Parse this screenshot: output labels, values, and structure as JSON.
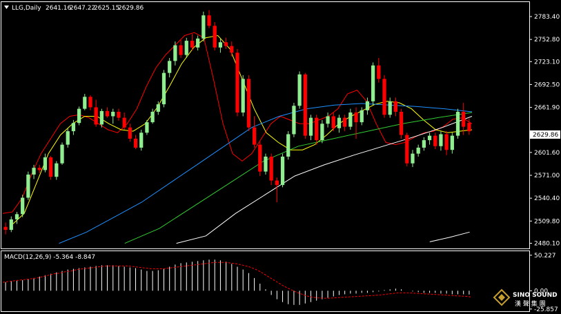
{
  "header": {
    "symbol_line": "LLG,Daily",
    "open": "2641.16",
    "high": "2647.22",
    "low": "2625.15",
    "close": "2629.86"
  },
  "macd_label": "MACD(12,26,9) -5.364 -8.847",
  "watermark": {
    "brand": "SINO SOUND",
    "chinese": "漢 聲 集 團"
  },
  "colors": {
    "background": "#000000",
    "up_candle": "#90ee90",
    "down_candle": "#ff0000",
    "ma5": "#ff0000",
    "ma10": "#ffff00",
    "ma30": "#1e90ff",
    "ma60": "#32cd32",
    "ma120": "#ffffff",
    "macd_signal": "#ff0000",
    "macd_hist": "#ffffff"
  },
  "chart_data": [
    {
      "type": "candlestick",
      "title": "LLG,Daily",
      "ylim": [
        2475,
        2800
      ],
      "y_ticks": [
        "2783.40",
        "2752.80",
        "2723.10",
        "2692.50",
        "2661.90",
        "2629.86",
        "2601.60",
        "2571.00",
        "2540.40",
        "2509.80",
        "2480.10"
      ],
      "current_price": "2629.86",
      "ohlc": [
        [
          2502,
          2508,
          2492,
          2498
        ],
        [
          2498,
          2516,
          2495,
          2512
        ],
        [
          2512,
          2522,
          2506,
          2519
        ],
        [
          2519,
          2545,
          2515,
          2541
        ],
        [
          2541,
          2576,
          2538,
          2572
        ],
        [
          2572,
          2585,
          2566,
          2581
        ],
        [
          2581,
          2585,
          2574,
          2578
        ],
        [
          2578,
          2600,
          2575,
          2595
        ],
        [
          2595,
          2597,
          2565,
          2569
        ],
        [
          2569,
          2590,
          2565,
          2587
        ],
        [
          2587,
          2615,
          2585,
          2612
        ],
        [
          2612,
          2634,
          2608,
          2630
        ],
        [
          2630,
          2645,
          2625,
          2641
        ],
        [
          2641,
          2663,
          2638,
          2660
        ],
        [
          2660,
          2680,
          2658,
          2676
        ],
        [
          2676,
          2678,
          2658,
          2662
        ],
        [
          2662,
          2672,
          2636,
          2639
        ],
        [
          2639,
          2660,
          2635,
          2657
        ],
        [
          2657,
          2662,
          2648,
          2650
        ],
        [
          2650,
          2660,
          2640,
          2656
        ],
        [
          2656,
          2660,
          2644,
          2648
        ],
        [
          2648,
          2655,
          2632,
          2635
        ],
        [
          2635,
          2640,
          2616,
          2620
        ],
        [
          2620,
          2625,
          2606,
          2608
        ],
        [
          2608,
          2632,
          2604,
          2628
        ],
        [
          2628,
          2645,
          2625,
          2642
        ],
        [
          2642,
          2660,
          2640,
          2656
        ],
        [
          2656,
          2670,
          2652,
          2666
        ],
        [
          2666,
          2712,
          2662,
          2708
        ],
        [
          2708,
          2728,
          2702,
          2724
        ],
        [
          2724,
          2750,
          2718,
          2745
        ],
        [
          2745,
          2752,
          2728,
          2732
        ],
        [
          2732,
          2755,
          2728,
          2751
        ],
        [
          2751,
          2760,
          2738,
          2742
        ],
        [
          2742,
          2758,
          2738,
          2754
        ],
        [
          2754,
          2790,
          2750,
          2785
        ],
        [
          2785,
          2792,
          2768,
          2771
        ],
        [
          2771,
          2776,
          2738,
          2742
        ],
        [
          2742,
          2754,
          2735,
          2749
        ],
        [
          2749,
          2755,
          2740,
          2744
        ],
        [
          2744,
          2750,
          2730,
          2735
        ],
        [
          2735,
          2740,
          2650,
          2655
        ],
        [
          2655,
          2705,
          2650,
          2700
        ],
        [
          2700,
          2705,
          2630,
          2635
        ],
        [
          2635,
          2650,
          2608,
          2612
        ],
        [
          2612,
          2616,
          2570,
          2576
        ],
        [
          2576,
          2600,
          2572,
          2596
        ],
        [
          2596,
          2600,
          2558,
          2564
        ],
        [
          2564,
          2568,
          2535,
          2558
        ],
        [
          2558,
          2600,
          2555,
          2596
        ],
        [
          2596,
          2630,
          2592,
          2626
        ],
        [
          2626,
          2668,
          2622,
          2664
        ],
        [
          2664,
          2710,
          2660,
          2706
        ],
        [
          2706,
          2708,
          2620,
          2624
        ],
        [
          2624,
          2652,
          2618,
          2648
        ],
        [
          2648,
          2652,
          2612,
          2618
        ],
        [
          2618,
          2645,
          2614,
          2640
        ],
        [
          2640,
          2655,
          2635,
          2650
        ],
        [
          2650,
          2655,
          2630,
          2634
        ],
        [
          2634,
          2652,
          2628,
          2648
        ],
        [
          2648,
          2652,
          2630,
          2636
        ],
        [
          2636,
          2660,
          2632,
          2655
        ],
        [
          2655,
          2662,
          2620,
          2642
        ],
        [
          2642,
          2662,
          2638,
          2658
        ],
        [
          2658,
          2675,
          2652,
          2670
        ],
        [
          2670,
          2722,
          2665,
          2718
        ],
        [
          2718,
          2728,
          2695,
          2700
        ],
        [
          2700,
          2705,
          2648,
          2652
        ],
        [
          2652,
          2675,
          2648,
          2670
        ],
        [
          2670,
          2675,
          2650,
          2656
        ],
        [
          2656,
          2660,
          2620,
          2625
        ],
        [
          2625,
          2628,
          2583,
          2587
        ],
        [
          2587,
          2605,
          2582,
          2600
        ],
        [
          2600,
          2612,
          2596,
          2608
        ],
        [
          2608,
          2622,
          2604,
          2618
        ],
        [
          2618,
          2628,
          2612,
          2624
        ],
        [
          2624,
          2628,
          2606,
          2610
        ],
        [
          2610,
          2630,
          2604,
          2626
        ],
        [
          2626,
          2630,
          2598,
          2605
        ],
        [
          2605,
          2628,
          2600,
          2624
        ],
        [
          2624,
          2660,
          2620,
          2656
        ],
        [
          2656,
          2668,
          2625,
          2636
        ],
        [
          2641.16,
          2647.22,
          2625.15,
          2629.86
        ]
      ],
      "moving_averages": [
        {
          "values": [
            2520,
            2522,
            2540,
            2572,
            2600,
            2620,
            2640,
            2650,
            2652,
            2648,
            2640,
            2632,
            2628,
            2640,
            2660,
            2690,
            2715,
            2732,
            2745,
            2758,
            2762,
            2755,
            2700,
            2640,
            2600,
            2590,
            2600,
            2620,
            2640,
            2650,
            2645,
            2640,
            2640,
            2645,
            2650,
            2660,
            2680,
            2685,
            2670,
            2640,
            2615,
            2612,
            2615,
            2622,
            2628,
            2630,
            2636,
            2646,
            2648,
            2640
          ]
        },
        {
          "values": [
            2505,
            2520,
            2560,
            2600,
            2625,
            2640,
            2650,
            2650,
            2640,
            2632,
            2630,
            2640,
            2662,
            2690,
            2720,
            2742,
            2755,
            2758,
            2740,
            2700,
            2660,
            2628,
            2615,
            2605,
            2605,
            2612,
            2625,
            2640,
            2650,
            2658,
            2666,
            2670,
            2668,
            2660,
            2645,
            2632,
            2628,
            2630,
            2632
          ]
        },
        {
          "values": [
            2480,
            2495,
            2515,
            2535,
            2560,
            2585,
            2610,
            2635,
            2650,
            2660,
            2665,
            2667,
            2665,
            2663,
            2660,
            2656
          ]
        },
        {
          "values": [
            2480,
            2500,
            2530,
            2560,
            2590,
            2610,
            2620,
            2630,
            2640,
            2648,
            2655
          ]
        },
        {
          "values": [
            2480,
            2490,
            2520,
            2545,
            2570,
            2585,
            2598,
            2610,
            2622,
            2635,
            2650
          ]
        },
        {
          "values": [
            2482,
            2488,
            2495
          ]
        }
      ]
    },
    {
      "type": "bar",
      "title": "MACD(12,26,9) -5.364 -8.847",
      "ylim": [
        -28,
        52
      ],
      "y_ticks": [
        "50.227",
        "0.00",
        "-25.857"
      ],
      "macd_value": -5.364,
      "signal_value": -8.847,
      "histogram": [
        12,
        14,
        14,
        15,
        16,
        18,
        20,
        22,
        24,
        26,
        28,
        30,
        31,
        32,
        33,
        34,
        35,
        36,
        36,
        36,
        35,
        34,
        33,
        32,
        30,
        28,
        28,
        29,
        31,
        34,
        37,
        39,
        40,
        41,
        42,
        43,
        44,
        44,
        43,
        41,
        38,
        34,
        30,
        25,
        18,
        10,
        2,
        -6,
        -12,
        -16,
        -19,
        -20,
        -20,
        -18,
        -16,
        -14,
        -12,
        -10,
        -8,
        -6,
        -5,
        -4,
        -4,
        -3,
        -3,
        -2,
        -1,
        1,
        2,
        3,
        2,
        0,
        -1,
        -2,
        -3,
        -3,
        -3,
        -4,
        -4,
        -5,
        -5,
        -5,
        -5.4
      ],
      "signal": [
        12,
        13,
        14,
        15,
        16,
        17,
        18,
        20,
        22,
        24,
        25,
        27,
        28,
        30,
        31,
        32,
        33,
        34,
        35,
        35,
        35,
        35,
        35,
        34,
        33,
        32,
        31,
        31,
        31,
        32,
        33,
        34,
        35,
        36,
        37,
        38,
        39,
        40,
        40,
        40,
        39,
        38,
        36,
        34,
        31,
        27,
        22,
        17,
        12,
        7,
        3,
        -1,
        -4,
        -7,
        -9,
        -10,
        -10.5,
        -10.5,
        -10,
        -9.5,
        -9,
        -8.5,
        -8,
        -7.5,
        -7,
        -6.5,
        -6,
        -5,
        -4,
        -3,
        -3,
        -3,
        -3.5,
        -4,
        -4.5,
        -5,
        -5.5,
        -6,
        -6.5,
        -7,
        -7.5,
        -8,
        -8.847
      ]
    }
  ]
}
